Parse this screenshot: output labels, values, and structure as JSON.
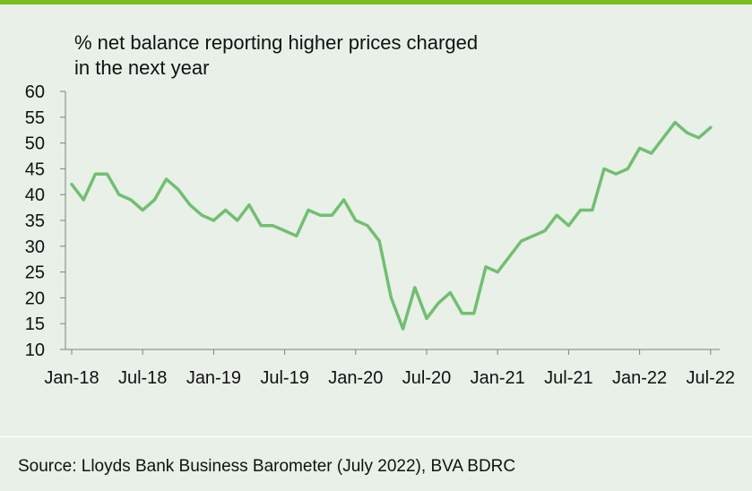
{
  "colors": {
    "accent_bar": "#7cbd1e",
    "series_line": "#71bf71",
    "background": "#e8f0e8"
  },
  "chart_data": {
    "type": "line",
    "title": "% net balance reporting higher prices charged in the next year",
    "title_lines": [
      "% net balance reporting higher prices charged",
      "in the next year"
    ],
    "ylim": [
      10,
      60
    ],
    "y_ticks": [
      "10",
      "15",
      "20",
      "25",
      "30",
      "35",
      "40",
      "45",
      "50",
      "55",
      "60"
    ],
    "x_ticks": [
      "Jan-18",
      "Jul-18",
      "Jan-19",
      "Jul-19",
      "Jan-20",
      "Jul-20",
      "Jan-21",
      "Jul-21",
      "Jan-22",
      "Jul-22"
    ],
    "grid": false,
    "series": [
      {
        "x": [
          "2018-01",
          "2018-02",
          "2018-03",
          "2018-04",
          "2018-05",
          "2018-06",
          "2018-07",
          "2018-08",
          "2018-09",
          "2018-10",
          "2018-11",
          "2018-12",
          "2019-01",
          "2019-02",
          "2019-03",
          "2019-04",
          "2019-05",
          "2019-06",
          "2019-07",
          "2019-08",
          "2019-09",
          "2019-10",
          "2019-11",
          "2019-12",
          "2020-01",
          "2020-02",
          "2020-03",
          "2020-04",
          "2020-05",
          "2020-06",
          "2020-07",
          "2020-08",
          "2020-09",
          "2020-10",
          "2020-11",
          "2020-12",
          "2021-01",
          "2021-02",
          "2021-03",
          "2021-04",
          "2021-05",
          "2021-06",
          "2021-07",
          "2021-08",
          "2021-09",
          "2021-10",
          "2021-11",
          "2021-12",
          "2022-01",
          "2022-02",
          "2022-03",
          "2022-04",
          "2022-05",
          "2022-06",
          "2022-07"
        ],
        "values": [
          42,
          39,
          44,
          44,
          40,
          39,
          37,
          39,
          43,
          41,
          38,
          36,
          35,
          37,
          35,
          38,
          34,
          34,
          33,
          32,
          37,
          36,
          36,
          39,
          35,
          34,
          31,
          20,
          14,
          22,
          16,
          19,
          21,
          17,
          17,
          26,
          25,
          28,
          31,
          32,
          33,
          36,
          34,
          37,
          37,
          45,
          44,
          45,
          49,
          48,
          51,
          54,
          52,
          51,
          53
        ]
      }
    ]
  },
  "source_text": "Source: Lloyds Bank Business Barometer (July 2022), BVA BDRC"
}
